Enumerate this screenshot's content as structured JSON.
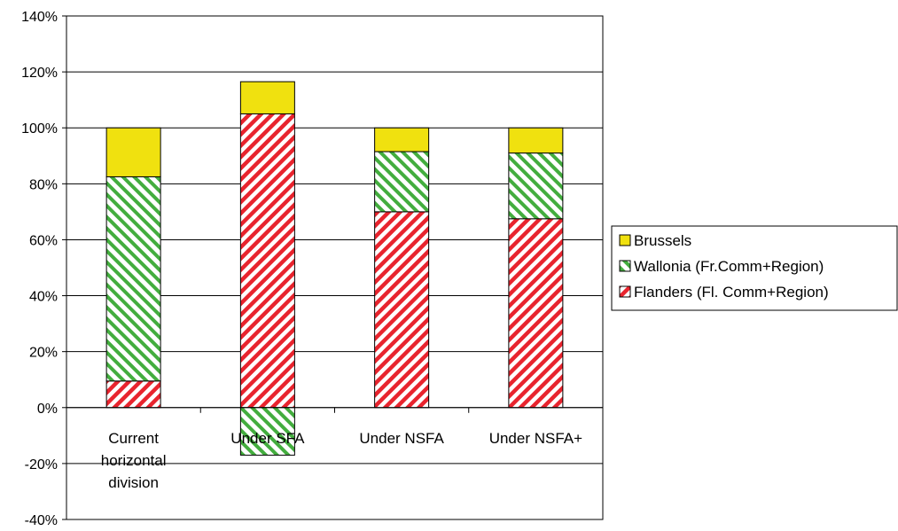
{
  "chart_data": {
    "type": "bar",
    "stacked": true,
    "title": "",
    "xlabel": "",
    "ylabel": "",
    "ylim": [
      -0.4,
      1.4
    ],
    "yticks": [
      -0.4,
      -0.2,
      0,
      0.2,
      0.4,
      0.6,
      0.8,
      1.0,
      1.2,
      1.4
    ],
    "ytick_labels": [
      "-40%",
      "-20%",
      "0%",
      "20%",
      "40%",
      "60%",
      "80%",
      "100%",
      "120%",
      "140%"
    ],
    "categories": [
      "Current horizontal division",
      "Under SFA",
      "Under NSFA",
      "Under NSFA+"
    ],
    "category_lines": [
      [
        "Current",
        "horizontal",
        "division"
      ],
      [
        "Under SFA"
      ],
      [
        "Under NSFA"
      ],
      [
        "Under NSFA+"
      ]
    ],
    "series": [
      {
        "name": "Flanders (Fl. Comm+Region)",
        "values": [
          0.095,
          1.05,
          0.7,
          0.675
        ],
        "color": "#e8242e",
        "pattern": "diagonal-stripe"
      },
      {
        "name": "Wallonia (Fr.Comm+Region)",
        "values": [
          0.73,
          -0.17,
          0.215,
          0.235
        ],
        "color": "#43ad3e",
        "pattern": "diagonal-stripe"
      },
      {
        "name": "Brussels",
        "values": [
          0.175,
          0.115,
          0.085,
          0.09
        ],
        "color": "#f0e10f",
        "pattern": "solid"
      }
    ],
    "legend_order": [
      "Brussels",
      "Wallonia (Fr.Comm+Region)",
      "Flanders (Fl. Comm+Region)"
    ],
    "legend_position": "right",
    "grid": true
  }
}
